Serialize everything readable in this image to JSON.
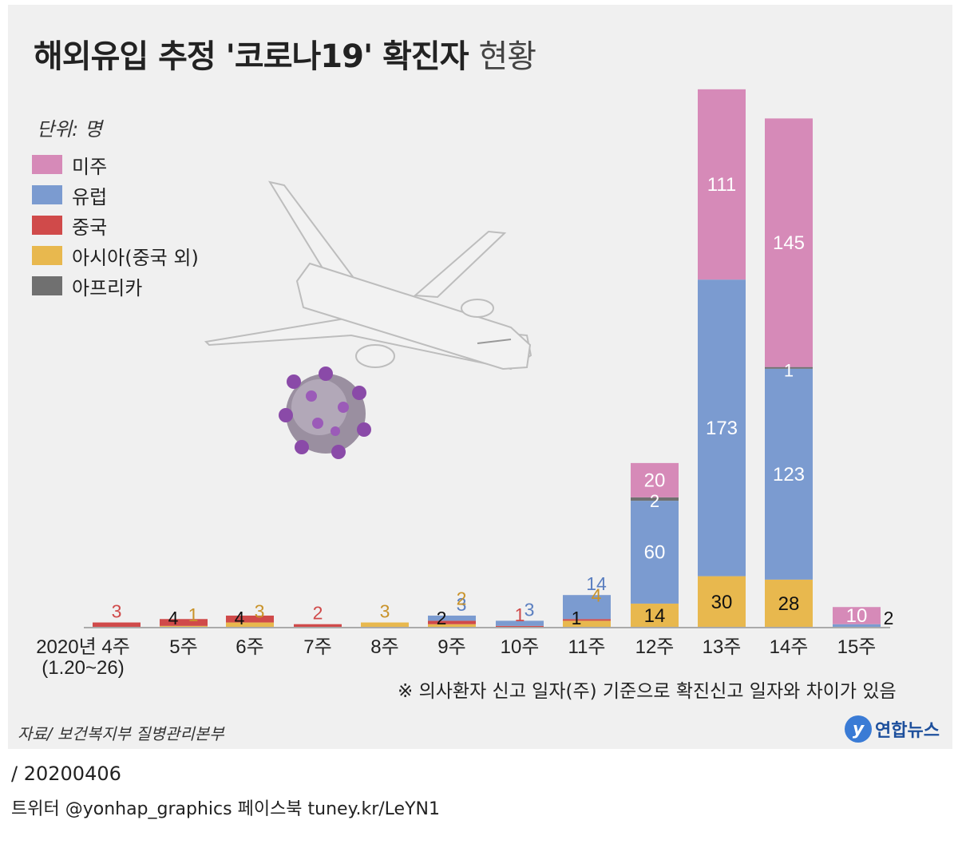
{
  "title": {
    "main": "해외유입 추정 '코로나19' 확진자",
    "sub": "현황"
  },
  "unit_label": "단위: 명",
  "legend": [
    {
      "label": "미주",
      "color": "#d68ab8"
    },
    {
      "label": "유럽",
      "color": "#7b9bd0"
    },
    {
      "label": "중국",
      "color": "#d04a4a"
    },
    {
      "label": "아시아(중국 외)",
      "color": "#e8b84e"
    },
    {
      "label": "아프리카",
      "color": "#707070"
    }
  ],
  "chart_data": {
    "type": "bar",
    "stacked": true,
    "categories": [
      "2020년 4주",
      "5주",
      "6주",
      "7주",
      "8주",
      "9주",
      "10주",
      "11주",
      "12주",
      "13주",
      "14주",
      "15주"
    ],
    "category_sublabels": [
      "(1.20~26)",
      "",
      "",
      "",
      "",
      "",
      "",
      "",
      "",
      "",
      "",
      ""
    ],
    "series": [
      {
        "name": "아시아(중국 외)",
        "color": "#e8b84e",
        "values": [
          0,
          1,
          3,
          0,
          3,
          2,
          0,
          4,
          14,
          30,
          28,
          0
        ]
      },
      {
        "name": "중국",
        "color": "#d04a4a",
        "values": [
          3,
          4,
          4,
          2,
          0,
          2,
          1,
          1,
          0,
          0,
          0,
          0
        ]
      },
      {
        "name": "유럽",
        "color": "#7b9bd0",
        "values": [
          0,
          0,
          0,
          0,
          0,
          3,
          3,
          14,
          60,
          173,
          123,
          2
        ]
      },
      {
        "name": "아프리카",
        "color": "#707070",
        "values": [
          0,
          0,
          0,
          0,
          0,
          0,
          0,
          0,
          2,
          0,
          1,
          0
        ]
      },
      {
        "name": "미주",
        "color": "#d68ab8",
        "values": [
          0,
          0,
          0,
          0,
          0,
          0,
          0,
          0,
          20,
          111,
          145,
          10
        ]
      }
    ],
    "ylim": [
      0,
      320
    ],
    "grid": false,
    "legend_position": "top-left"
  },
  "note": "※ 의사환자 신고 일자(주) 기준으로 확진신고 일자와 차이가 있음",
  "source": "자료/ 보건복지부 질병관리본부",
  "logo": {
    "mark": "y",
    "text": "연합뉴스"
  },
  "footer": {
    "date": "/ 20200406",
    "social": "트위터 @yonhap_graphics  페이스북 tuney.kr/LeYN1"
  }
}
